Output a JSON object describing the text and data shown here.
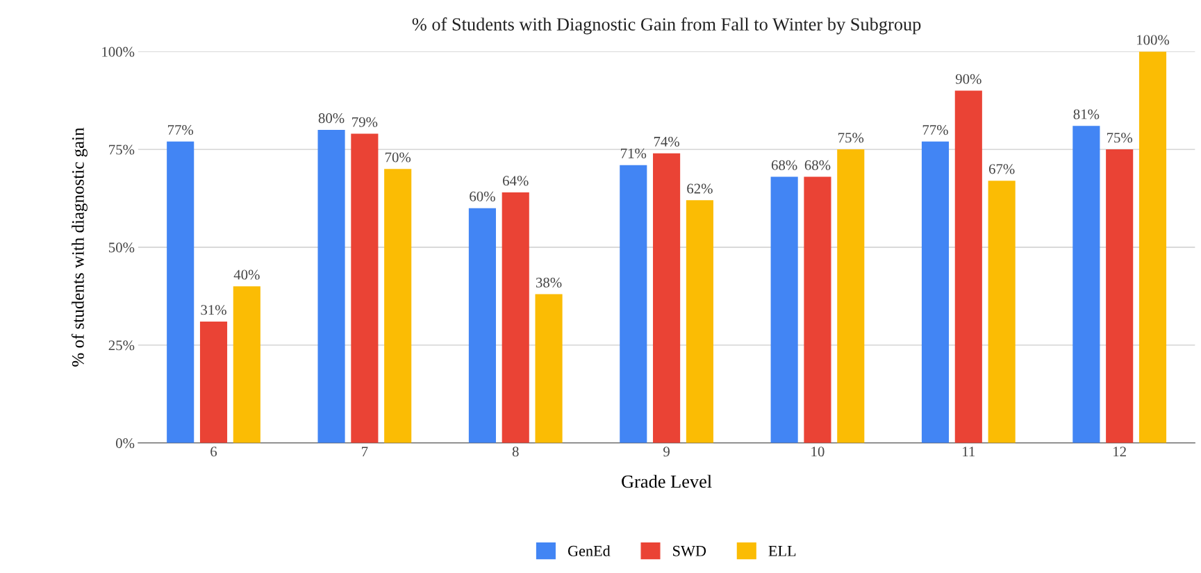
{
  "chart_data": {
    "type": "bar",
    "title": "% of Students with Diagnostic Gain from Fall to Winter by Subgroup",
    "xlabel": "Grade Level",
    "ylabel": "% of students with diagnostic gain",
    "categories": [
      "6",
      "7",
      "8",
      "9",
      "10",
      "11",
      "12"
    ],
    "series": [
      {
        "name": "GenEd",
        "color": "#4285f4",
        "values": [
          77,
          80,
          60,
          71,
          68,
          77,
          81
        ],
        "value_labels": [
          "77%",
          "80%",
          "60%",
          "71%",
          "68%",
          "77%",
          "81%"
        ]
      },
      {
        "name": "SWD",
        "color": "#ea4335",
        "values": [
          31,
          79,
          64,
          74,
          68,
          90,
          75
        ],
        "value_labels": [
          "31%",
          "79%",
          "64%",
          "74%",
          "68%",
          "90%",
          "75%"
        ]
      },
      {
        "name": "ELL",
        "color": "#fbbc04",
        "values": [
          40,
          70,
          38,
          62,
          75,
          67,
          100
        ],
        "value_labels": [
          "40%",
          "70%",
          "38%",
          "62%",
          "75%",
          "67%",
          "100%"
        ]
      }
    ],
    "ylim": [
      0,
      100
    ],
    "yticks": [
      {
        "value": 0,
        "label": "0%"
      },
      {
        "value": 25,
        "label": "25%"
      },
      {
        "value": 50,
        "label": "50%"
      },
      {
        "value": 75,
        "label": "75%"
      },
      {
        "value": 100,
        "label": "100%"
      }
    ],
    "grid": "y",
    "legend": "bottom"
  }
}
